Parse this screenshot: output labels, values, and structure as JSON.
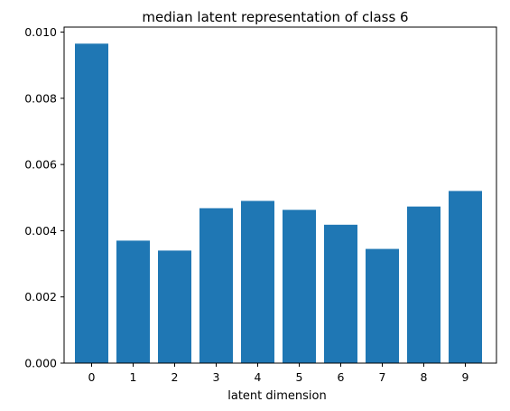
{
  "chart_data": {
    "type": "bar",
    "title": "median latent representation of class 6",
    "xlabel": "latent dimension",
    "ylabel": "",
    "categories": [
      "0",
      "1",
      "2",
      "3",
      "4",
      "5",
      "6",
      "7",
      "8",
      "9"
    ],
    "values": [
      0.00965,
      0.0037,
      0.0034,
      0.00468,
      0.0049,
      0.00463,
      0.00418,
      0.00345,
      0.00473,
      0.0052
    ],
    "yticks": [
      "0.000",
      "0.002",
      "0.004",
      "0.006",
      "0.008",
      "0.010"
    ],
    "ylim": [
      0,
      0.01015
    ],
    "grid": false,
    "bar_color": "#1f77b4"
  }
}
